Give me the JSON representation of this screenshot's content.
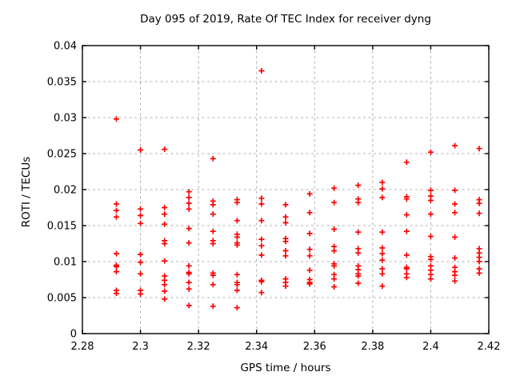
{
  "colors": {
    "background": "#ffffff",
    "frame": "#000000",
    "grid": "#b0b0b0",
    "marker": "#ff0000",
    "text": "#000000"
  },
  "chart_data": {
    "type": "scatter",
    "title": "Day 095 of 2019, Rate Of TEC Index for receiver dyng",
    "xlabel": "GPS time / hours",
    "ylabel": "ROTI / TECUs",
    "xlim": [
      2.28,
      2.42
    ],
    "ylim": [
      0,
      0.04
    ],
    "grid": true,
    "legend_position": "none",
    "xticks": [
      {
        "v": 2.28,
        "label": "2.28"
      },
      {
        "v": 2.3,
        "label": "2.3"
      },
      {
        "v": 2.32,
        "label": "2.32"
      },
      {
        "v": 2.34,
        "label": "2.34"
      },
      {
        "v": 2.36,
        "label": "2.36"
      },
      {
        "v": 2.38,
        "label": "2.38"
      },
      {
        "v": 2.4,
        "label": "2.4"
      },
      {
        "v": 2.42,
        "label": "2.42"
      }
    ],
    "yticks": [
      {
        "v": 0.0,
        "label": "0"
      },
      {
        "v": 0.005,
        "label": "0.005"
      },
      {
        "v": 0.01,
        "label": "0.01"
      },
      {
        "v": 0.015,
        "label": "0.015"
      },
      {
        "v": 0.02,
        "label": "0.02"
      },
      {
        "v": 0.025,
        "label": "0.025"
      },
      {
        "v": 0.03,
        "label": "0.03"
      },
      {
        "v": 0.035,
        "label": "0.035"
      },
      {
        "v": 0.04,
        "label": "0.04"
      }
    ],
    "series": [
      {
        "name": "ROTI",
        "marker": "plus",
        "color": "#ff0000",
        "points": [
          [
            2.2917,
            0.0298
          ],
          [
            2.2917,
            0.018
          ],
          [
            2.2917,
            0.0171
          ],
          [
            2.2917,
            0.0162
          ],
          [
            2.2917,
            0.0111
          ],
          [
            2.2917,
            0.0095
          ],
          [
            2.2917,
            0.0093
          ],
          [
            2.2917,
            0.0086
          ],
          [
            2.2917,
            0.006
          ],
          [
            2.2917,
            0.0056
          ],
          [
            2.3,
            0.0255
          ],
          [
            2.3,
            0.0173
          ],
          [
            2.3,
            0.0164
          ],
          [
            2.3,
            0.0153
          ],
          [
            2.3,
            0.011
          ],
          [
            2.3,
            0.0099
          ],
          [
            2.3,
            0.0083
          ],
          [
            2.3,
            0.006
          ],
          [
            2.3,
            0.0055
          ],
          [
            2.3083,
            0.0256
          ],
          [
            2.3083,
            0.0175
          ],
          [
            2.3083,
            0.0166
          ],
          [
            2.3083,
            0.0152
          ],
          [
            2.3083,
            0.0129
          ],
          [
            2.3083,
            0.0125
          ],
          [
            2.3083,
            0.0101
          ],
          [
            2.3083,
            0.008
          ],
          [
            2.3083,
            0.0074
          ],
          [
            2.3083,
            0.0068
          ],
          [
            2.3083,
            0.0059
          ],
          [
            2.3083,
            0.0048
          ],
          [
            2.3167,
            0.0197
          ],
          [
            2.3167,
            0.0189
          ],
          [
            2.3167,
            0.0181
          ],
          [
            2.3167,
            0.0173
          ],
          [
            2.3167,
            0.0146
          ],
          [
            2.3167,
            0.0126
          ],
          [
            2.3167,
            0.0094
          ],
          [
            2.3167,
            0.0085
          ],
          [
            2.3167,
            0.0083
          ],
          [
            2.3167,
            0.0071
          ],
          [
            2.3167,
            0.0062
          ],
          [
            2.3167,
            0.0039
          ],
          [
            2.325,
            0.0243
          ],
          [
            2.325,
            0.0184
          ],
          [
            2.325,
            0.0179
          ],
          [
            2.325,
            0.0166
          ],
          [
            2.325,
            0.0142
          ],
          [
            2.325,
            0.0129
          ],
          [
            2.325,
            0.0125
          ],
          [
            2.325,
            0.0084
          ],
          [
            2.325,
            0.0081
          ],
          [
            2.325,
            0.0068
          ],
          [
            2.325,
            0.0038
          ],
          [
            2.3333,
            0.0186
          ],
          [
            2.3333,
            0.0182
          ],
          [
            2.3333,
            0.0157
          ],
          [
            2.3333,
            0.0138
          ],
          [
            2.3333,
            0.0134
          ],
          [
            2.3333,
            0.0126
          ],
          [
            2.3333,
            0.0123
          ],
          [
            2.3333,
            0.0082
          ],
          [
            2.3333,
            0.0071
          ],
          [
            2.3333,
            0.0068
          ],
          [
            2.3333,
            0.006
          ],
          [
            2.3333,
            0.0036
          ],
          [
            2.3417,
            0.0365
          ],
          [
            2.3417,
            0.0188
          ],
          [
            2.3417,
            0.018
          ],
          [
            2.3417,
            0.0157
          ],
          [
            2.3417,
            0.0131
          ],
          [
            2.3417,
            0.0122
          ],
          [
            2.3417,
            0.0109
          ],
          [
            2.3417,
            0.0074
          ],
          [
            2.3417,
            0.0072
          ],
          [
            2.3417,
            0.0057
          ],
          [
            2.35,
            0.0179
          ],
          [
            2.35,
            0.0162
          ],
          [
            2.35,
            0.0154
          ],
          [
            2.35,
            0.0132
          ],
          [
            2.35,
            0.0128
          ],
          [
            2.35,
            0.0115
          ],
          [
            2.35,
            0.0108
          ],
          [
            2.35,
            0.0076
          ],
          [
            2.35,
            0.0071
          ],
          [
            2.35,
            0.0066
          ],
          [
            2.3583,
            0.0194
          ],
          [
            2.3583,
            0.0168
          ],
          [
            2.3583,
            0.0139
          ],
          [
            2.3583,
            0.0117
          ],
          [
            2.3583,
            0.0108
          ],
          [
            2.3583,
            0.0088
          ],
          [
            2.3583,
            0.0075
          ],
          [
            2.3583,
            0.0071
          ],
          [
            2.3583,
            0.0069
          ],
          [
            2.3667,
            0.0202
          ],
          [
            2.3667,
            0.0182
          ],
          [
            2.3667,
            0.0145
          ],
          [
            2.3667,
            0.0121
          ],
          [
            2.3667,
            0.0115
          ],
          [
            2.3667,
            0.0097
          ],
          [
            2.3667,
            0.0094
          ],
          [
            2.3667,
            0.0082
          ],
          [
            2.3667,
            0.0076
          ],
          [
            2.3667,
            0.0065
          ],
          [
            2.375,
            0.0206
          ],
          [
            2.375,
            0.0187
          ],
          [
            2.375,
            0.0182
          ],
          [
            2.375,
            0.0141
          ],
          [
            2.375,
            0.0118
          ],
          [
            2.375,
            0.0112
          ],
          [
            2.375,
            0.0094
          ],
          [
            2.375,
            0.0089
          ],
          [
            2.375,
            0.0083
          ],
          [
            2.375,
            0.008
          ],
          [
            2.375,
            0.007
          ],
          [
            2.3833,
            0.021
          ],
          [
            2.3833,
            0.0201
          ],
          [
            2.3833,
            0.0189
          ],
          [
            2.3833,
            0.0141
          ],
          [
            2.3833,
            0.0119
          ],
          [
            2.3833,
            0.0111
          ],
          [
            2.3833,
            0.0102
          ],
          [
            2.3833,
            0.009
          ],
          [
            2.3833,
            0.0083
          ],
          [
            2.3833,
            0.0066
          ],
          [
            2.3917,
            0.0238
          ],
          [
            2.3917,
            0.019
          ],
          [
            2.3917,
            0.0187
          ],
          [
            2.3917,
            0.0165
          ],
          [
            2.3917,
            0.0142
          ],
          [
            2.3917,
            0.0109
          ],
          [
            2.3917,
            0.0092
          ],
          [
            2.3917,
            0.009
          ],
          [
            2.3917,
            0.0083
          ],
          [
            2.3917,
            0.0078
          ],
          [
            2.4,
            0.0252
          ],
          [
            2.4,
            0.0199
          ],
          [
            2.4,
            0.0191
          ],
          [
            2.4,
            0.0185
          ],
          [
            2.4,
            0.0166
          ],
          [
            2.4,
            0.0135
          ],
          [
            2.4,
            0.0107
          ],
          [
            2.4,
            0.0103
          ],
          [
            2.4,
            0.0094
          ],
          [
            2.4,
            0.0088
          ],
          [
            2.4,
            0.0082
          ],
          [
            2.4,
            0.0076
          ],
          [
            2.4083,
            0.0261
          ],
          [
            2.4083,
            0.0199
          ],
          [
            2.4083,
            0.018
          ],
          [
            2.4083,
            0.0168
          ],
          [
            2.4083,
            0.0134
          ],
          [
            2.4083,
            0.0105
          ],
          [
            2.4083,
            0.0092
          ],
          [
            2.4083,
            0.0086
          ],
          [
            2.4083,
            0.0081
          ],
          [
            2.4083,
            0.0073
          ],
          [
            2.4167,
            0.0257
          ],
          [
            2.4167,
            0.0186
          ],
          [
            2.4167,
            0.0181
          ],
          [
            2.4167,
            0.0167
          ],
          [
            2.4167,
            0.0118
          ],
          [
            2.4167,
            0.0112
          ],
          [
            2.4167,
            0.0106
          ],
          [
            2.4167,
            0.01
          ],
          [
            2.4167,
            0.009
          ],
          [
            2.4167,
            0.0084
          ]
        ]
      }
    ]
  }
}
